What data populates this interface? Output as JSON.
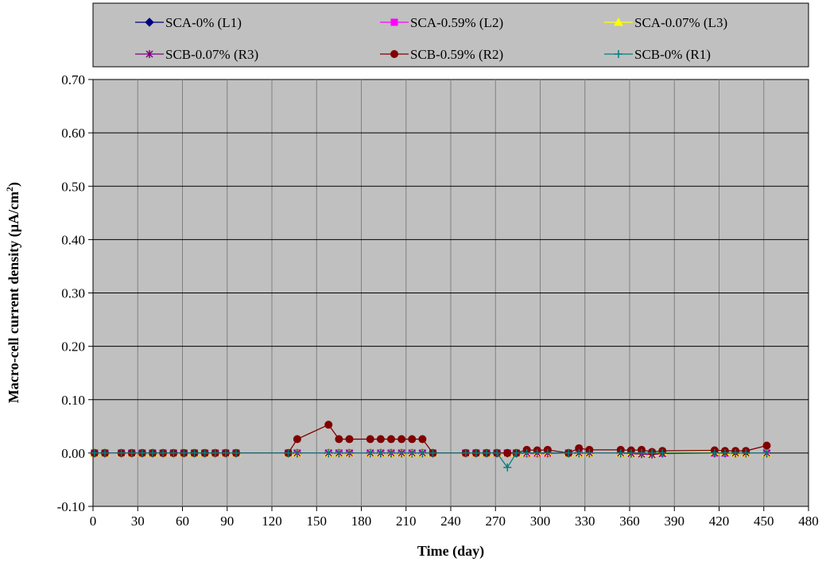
{
  "chart_data": {
    "type": "line",
    "title": "",
    "xlabel": "Time (day)",
    "ylabel_main": "Macro-cell current density (µA/cm",
    "ylabel_sup": "2",
    "ylabel_close": ")",
    "xlim": [
      0,
      480
    ],
    "ylim": [
      -0.1,
      0.7
    ],
    "x_ticks": [
      0,
      30,
      60,
      90,
      120,
      150,
      180,
      210,
      240,
      270,
      300,
      330,
      360,
      390,
      420,
      450,
      480
    ],
    "y_ticks": [
      -0.1,
      0.0,
      0.1,
      0.2,
      0.3,
      0.4,
      0.5,
      0.6,
      0.7
    ],
    "x_tick_labels": [
      "0",
      "30",
      "60",
      "90",
      "120",
      "150",
      "180",
      "210",
      "240",
      "270",
      "300",
      "330",
      "360",
      "390",
      "420",
      "450",
      "480"
    ],
    "y_tick_labels": [
      "-0.10",
      "0.00",
      "0.10",
      "0.20",
      "0.30",
      "0.40",
      "0.50",
      "0.60",
      "0.70"
    ],
    "grid": {
      "x": true,
      "y": true
    },
    "plot_background": "#c0c0c0",
    "legend_position": "top",
    "legend_background": "#c0c0c0",
    "series": [
      {
        "name": "SCA-0% (L1)",
        "color": "#000080",
        "marker": "diamond",
        "x": [
          1,
          8,
          19,
          26,
          33,
          40,
          47,
          54,
          61,
          68,
          75,
          82,
          89,
          96,
          131,
          137,
          158,
          165,
          172,
          186,
          193,
          200,
          207,
          214,
          221,
          228,
          250,
          257,
          264,
          271,
          278,
          284,
          291,
          298,
          305,
          319,
          326,
          333,
          354,
          361,
          368,
          375,
          382,
          417,
          424,
          431,
          438,
          452
        ],
        "y": [
          0,
          0,
          0,
          0,
          0,
          0,
          0,
          0,
          0,
          0,
          0,
          0,
          0,
          0,
          0,
          0,
          0,
          0,
          0,
          0,
          0,
          0,
          0,
          0,
          0,
          0,
          0,
          0,
          0,
          0,
          0,
          0,
          0,
          0,
          0,
          0,
          0,
          0,
          0,
          0,
          0,
          0,
          0,
          0,
          0,
          0,
          0,
          0
        ]
      },
      {
        "name": "SCA-0.59% (L2)",
        "color": "#ff00ff",
        "marker": "square",
        "x": [
          1,
          8,
          19,
          26,
          33,
          40,
          47,
          54,
          61,
          68,
          75,
          82,
          89,
          96,
          131,
          137,
          158,
          165,
          172,
          186,
          193,
          200,
          207,
          214,
          221,
          228,
          250,
          257,
          264,
          271,
          278,
          284,
          291,
          298,
          305,
          319,
          326,
          333,
          354,
          361,
          368,
          375,
          382,
          417,
          424,
          431,
          438,
          452
        ],
        "y": [
          0,
          0,
          0,
          0,
          0,
          0,
          0,
          0,
          0,
          0,
          0,
          0,
          0,
          0,
          0,
          0,
          0,
          0,
          0,
          0,
          0,
          0,
          0,
          0,
          0,
          0,
          0,
          0,
          0,
          0,
          0,
          0,
          -0.001,
          -0.001,
          -0.001,
          0,
          0,
          0,
          0,
          0,
          0,
          0,
          0,
          0,
          0,
          0,
          0,
          0
        ]
      },
      {
        "name": "SCA-0.07% (L3)",
        "color": "#ffff00",
        "marker": "triangle",
        "x": [
          1,
          8,
          19,
          26,
          33,
          40,
          47,
          54,
          61,
          68,
          75,
          82,
          89,
          96,
          131,
          137,
          158,
          165,
          172,
          186,
          193,
          200,
          207,
          214,
          221,
          228,
          250,
          257,
          264,
          271,
          278,
          284,
          291,
          298,
          305,
          319,
          326,
          333,
          354,
          361,
          368,
          375,
          382,
          417,
          424,
          431,
          438,
          452
        ],
        "y": [
          0,
          0,
          0,
          0,
          0,
          0,
          0,
          0,
          0,
          0,
          0,
          0,
          0,
          0,
          0,
          0,
          0,
          0,
          0,
          0,
          0,
          0,
          0,
          0,
          0,
          0,
          0,
          0,
          0,
          0,
          0,
          0,
          0,
          0,
          0,
          0,
          0,
          0,
          0,
          0,
          0,
          0,
          0.002,
          0.003,
          0.002,
          0,
          0,
          0
        ]
      },
      {
        "name": "SCB-0.07% (R3)",
        "color": "#800080",
        "marker": "x-star",
        "x": [
          1,
          8,
          19,
          26,
          33,
          40,
          47,
          54,
          61,
          68,
          75,
          82,
          89,
          96,
          131,
          137,
          158,
          165,
          172,
          186,
          193,
          200,
          207,
          214,
          221,
          228,
          250,
          257,
          264,
          271,
          278,
          284,
          291,
          298,
          305,
          319,
          326,
          333,
          354,
          361,
          368,
          375,
          382,
          417,
          424,
          431,
          438,
          452
        ],
        "y": [
          0,
          0,
          0,
          0,
          0,
          0,
          0,
          0,
          0,
          0,
          0,
          0,
          0,
          0,
          0,
          0,
          0,
          0,
          0,
          0,
          0,
          0,
          0,
          0,
          0,
          0,
          0,
          0,
          0,
          0,
          0,
          0,
          0,
          0,
          0,
          0,
          0,
          0,
          0,
          -0.001,
          -0.002,
          -0.003,
          -0.001,
          0,
          0,
          0,
          0,
          0
        ]
      },
      {
        "name": "SCB-0.59% (R2)",
        "color": "#800000",
        "marker": "circle",
        "x": [
          1,
          8,
          19,
          26,
          33,
          40,
          47,
          54,
          61,
          68,
          75,
          82,
          89,
          96,
          131,
          137,
          158,
          165,
          172,
          186,
          193,
          200,
          207,
          214,
          221,
          228,
          250,
          257,
          264,
          271,
          278,
          284,
          291,
          298,
          305,
          319,
          326,
          333,
          354,
          361,
          368,
          375,
          382,
          417,
          424,
          431,
          438,
          452
        ],
        "y": [
          0,
          0,
          0,
          0,
          0,
          0,
          0,
          0,
          0,
          0,
          0,
          0,
          0,
          0,
          0,
          0.026,
          0.053,
          0.026,
          0.026,
          0.026,
          0.026,
          0.026,
          0.026,
          0.026,
          0.026,
          0,
          0,
          0,
          0,
          0,
          0,
          0,
          0.006,
          0.005,
          0.006,
          0,
          0.009,
          0.006,
          0.006,
          0.005,
          0.006,
          0.002,
          0.004,
          0.005,
          0.004,
          0.004,
          0.004,
          0.014
        ]
      },
      {
        "name": "SCB-0% (R1)",
        "color": "#008080",
        "marker": "plus",
        "x": [
          1,
          8,
          19,
          26,
          33,
          40,
          47,
          54,
          61,
          68,
          75,
          82,
          89,
          96,
          131,
          137,
          158,
          165,
          172,
          186,
          193,
          200,
          207,
          214,
          221,
          228,
          250,
          257,
          264,
          271,
          278,
          284,
          291,
          298,
          305,
          319,
          326,
          333,
          354,
          361,
          368,
          375,
          382,
          417,
          424,
          431,
          438,
          452
        ],
        "y": [
          0,
          0,
          0,
          0,
          0,
          0,
          0,
          0,
          0,
          0,
          0,
          0,
          0,
          0,
          0,
          0,
          0,
          0,
          0,
          0,
          0,
          0,
          0,
          0,
          0,
          0,
          0,
          0,
          0,
          0,
          -0.027,
          0,
          0,
          0,
          0,
          0,
          0,
          0,
          0,
          0,
          0,
          0,
          0,
          0,
          0,
          0,
          0,
          0
        ]
      }
    ]
  }
}
